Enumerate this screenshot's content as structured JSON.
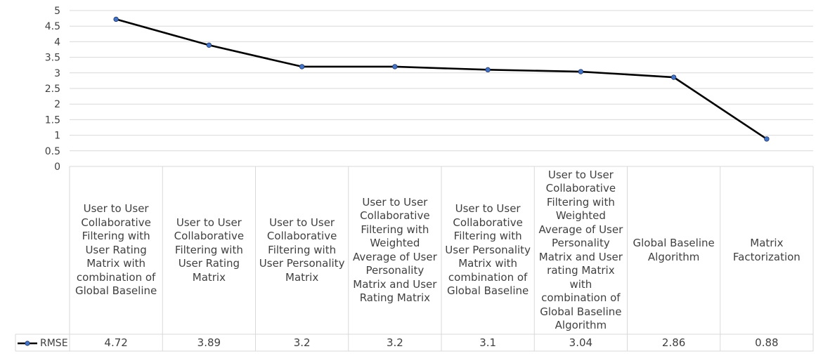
{
  "chart_data": {
    "type": "line",
    "title": "",
    "xlabel": "",
    "ylabel": "",
    "ylim": [
      0,
      5
    ],
    "yticks": [
      "0",
      "0.5",
      "1",
      "1.5",
      "2",
      "2.5",
      "3",
      "3.5",
      "4",
      "4.5",
      "5"
    ],
    "grid": true,
    "legend_position": "bottom-left, in data table",
    "categories": [
      "User to User Collaborative Filtering with User Rating Matrix with combination of Global Baseline",
      "User to User Collaborative Filtering with User Rating Matrix",
      "User to User Collaborative Filtering with User Personality Matrix",
      "User to User Collaborative Filtering with Weighted Average of User Personality Matrix and User Rating Matrix",
      "User to User Collaborative Filtering with User Personality Matrix with combination of Global Baseline",
      "User to User Collaborative Filtering with Weighted Average of User Personality Matrix and User rating Matrix with combination of Global Baseline Algorithm",
      "Global Baseline Algorithm",
      "Matrix Factorization"
    ],
    "series": [
      {
        "name": "RMSE",
        "values": [
          4.72,
          3.89,
          3.2,
          3.2,
          3.1,
          3.04,
          2.86,
          0.88
        ],
        "labels": [
          "4.72",
          "3.89",
          "3.2",
          "3.2",
          "3.1",
          "3.04",
          "2.86",
          "0.88"
        ],
        "color": "#000000",
        "marker_color": "#4472c4"
      }
    ]
  }
}
